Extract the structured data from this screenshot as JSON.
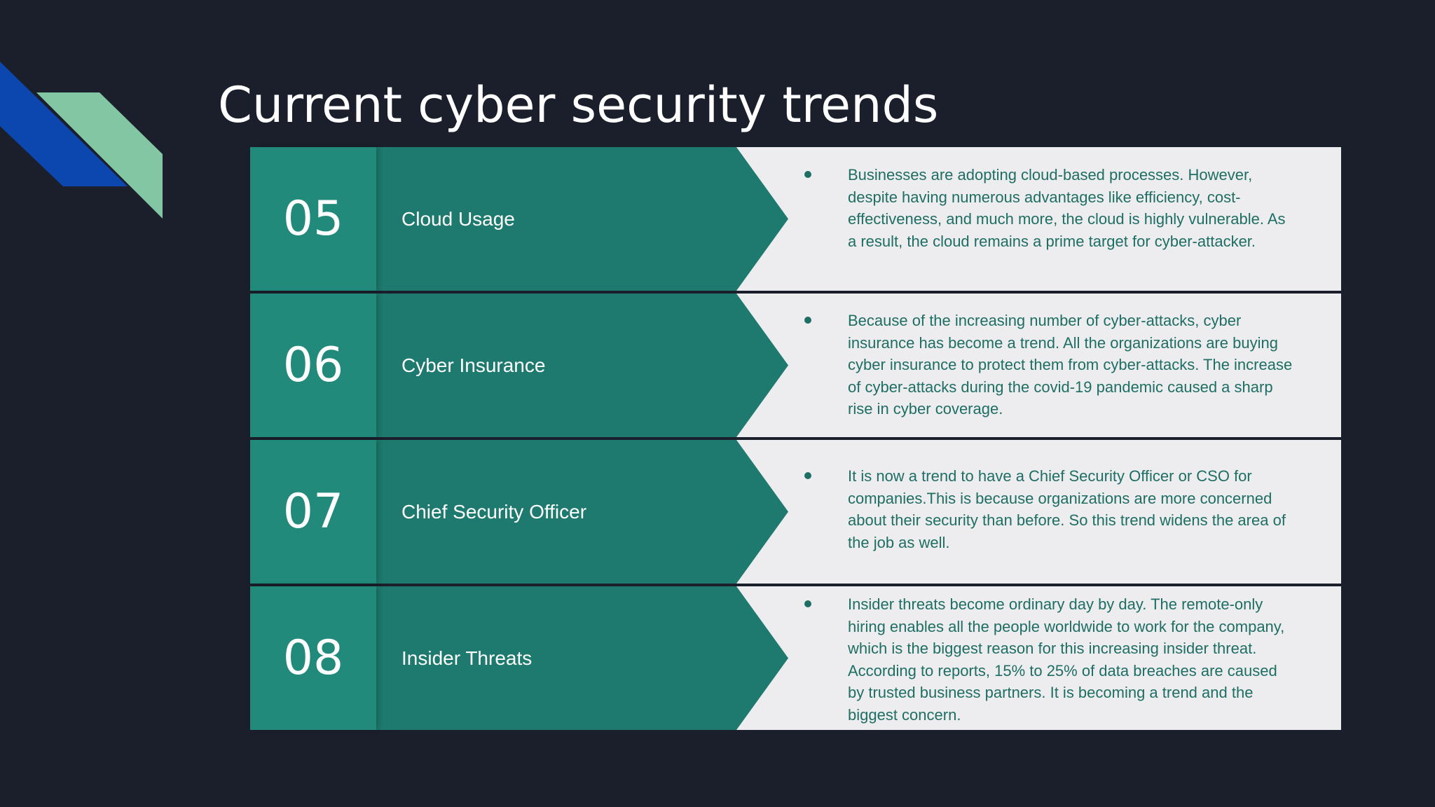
{
  "slide": {
    "title": "Current cyber security trends"
  },
  "trends": [
    {
      "number": "05",
      "label": "Cloud Usage",
      "description": "Businesses are adopting cloud-based processes. However, despite having numerous advantages like efficiency, cost-effectiveness, and much more, the cloud is highly vulnerable. As a result, the cloud remains a prime target for cyber-attacker."
    },
    {
      "number": "06",
      "label": "Cyber Insurance",
      "description": "Because of the increasing number of cyber-attacks, cyber insurance has become a trend. All the organizations are buying cyber insurance to protect them from cyber-attacks. The increase of cyber-attacks during the covid-19 pandemic caused a sharp rise in cyber coverage."
    },
    {
      "number": "07",
      "label": "Chief Security Officer",
      "description": "It is now a trend to have a Chief Security Officer or CSO for companies.This is because organizations are more concerned about their security than before. So this trend widens the area of the job as well."
    },
    {
      "number": "08",
      "label": "Insider Threats",
      "description": "Insider threats become ordinary day by day. The remote-only hiring enables all the people worldwide to work for the company, which is the biggest reason for this increasing insider threat. According to reports, 15% to 25% of data breaches are caused by trusted business partners. It is becoming a trend and the biggest concern."
    }
  ],
  "colors": {
    "background": "#1b1f2c",
    "teal": "#1e7a6e",
    "teal_light": "#218a7b",
    "text_teal": "#1e6e63",
    "panel": "#ededf0",
    "accent_blue": "#0c47b0",
    "accent_green": "#82c6a4"
  }
}
